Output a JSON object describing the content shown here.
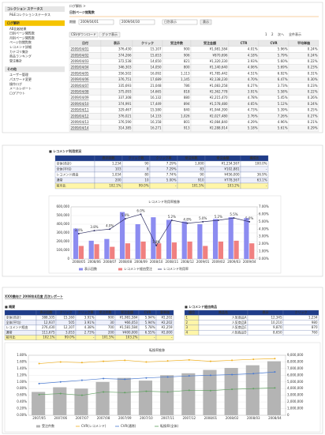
{
  "panel1": {
    "sidebar": [
      {
        "title": "コレクション ステータス",
        "items": [
          "P&Eコレクションステータス"
        ]
      },
      {
        "title": "ログ解析",
        "items": [
          "AB比較結果",
          "日別ページ閲覧数",
          "月別ページ閲覧数",
          "ページ別閲覧数",
          "レコメンド詳細",
          "カテゴリ集計",
          "商品ランキング",
          "受注集計"
        ]
      },
      {
        "title": "その他",
        "items": [
          "ユーザー管理",
          "パスワード変更",
          "操作ログ",
          "メールレポート",
          "ログアウト"
        ]
      }
    ],
    "breadcrumb": "ログ解析 >",
    "title": "日別ページ閲覧数",
    "filter": {
      "label": "期間",
      "from": "2009/04/01",
      "to": "2009/04/30",
      "unit": "日別表示",
      "button": "表示"
    },
    "toolbar": {
      "csv": "CSVダウンロード",
      "graph": "グラフ表示",
      "pager": [
        "1",
        "2",
        "次へ",
        "全件表示"
      ]
    },
    "table": {
      "headers": [
        "日付",
        "表示",
        "クリック",
        "受注件数",
        "受注金額",
        "CTR",
        "CVR",
        "平均単価"
      ],
      "rows": [
        [
          "2009/04/01",
          "376,430",
          "15,107",
          "900",
          "¥1,981,584",
          "4.01%",
          "5.96%",
          "0.24%"
        ],
        [
          "2009/04/02",
          "374,266",
          "15,653",
          "906",
          "¥870,696",
          "4.18%",
          "5.79%",
          "0.24%"
        ],
        [
          "2009/04/03",
          "372,538",
          "14,650",
          "821",
          "¥1,320,330",
          "3.93%",
          "5.60%",
          "0.22%"
        ],
        [
          "2009/04/04",
          "346,303",
          "14,050",
          "800",
          "¥1,140,640",
          "4.06%",
          "5.69%",
          "0.23%"
        ],
        [
          "2009/04/05",
          "356,502",
          "16,092",
          "1,113",
          "¥1,785,442",
          "4.51%",
          "6.92%",
          "0.31%"
        ],
        [
          "2009/04/06",
          "376,751",
          "17,689",
          "1,145",
          "¥2,138,230",
          "4.70%",
          "6.47%",
          "0.30%"
        ],
        [
          "2009/04/07",
          "335,693",
          "21,048",
          "786",
          "¥1,083,258",
          "6.27%",
          "3.73%",
          "0.23%"
        ],
        [
          "2009/04/08",
          "375,093",
          "14,665",
          "818",
          "¥2,362,778",
          "3.91%",
          "5.58%",
          "0.22%"
        ],
        [
          "2009/04/09",
          "337,308",
          "16,132",
          "880",
          "¥2,215,470",
          "4.78%",
          "5.45%",
          "0.26%"
        ],
        [
          "2009/04/10",
          "374,991",
          "17,449",
          "894",
          "¥1,578,480",
          "4.65%",
          "5.12%",
          "0.24%"
        ],
        [
          "2009/04/11",
          "329,467",
          "15,580",
          "840",
          "¥1,944,390",
          "4.73%",
          "5.39%",
          "0.25%"
        ],
        [
          "2009/04/12",
          "376,021",
          "14,133",
          "1,026",
          "¥2,027,480",
          "3.76%",
          "7.26%",
          "0.27%"
        ],
        [
          "2009/04/13",
          "376,590",
          "16,158",
          "801",
          "¥2,084,840",
          "4.29%",
          "4.96%",
          "0.21%"
        ],
        [
          "2009/04/14",
          "314,385",
          "16,271",
          "913",
          "¥2,288,914",
          "5.18%",
          "5.61%",
          "0.29%"
        ]
      ]
    }
  },
  "panel2": {
    "heading": "■ レコメンド利用状況",
    "table": {
      "headers": [
        "",
        "表示回数",
        "クリック数",
        "クリック率",
        "受注件数",
        "受注金額",
        "構成比"
      ],
      "rows": [
        [
          "全体(合計)",
          "1,234",
          "90",
          "7.29%",
          "1,000",
          "¥1,234,567",
          "100.0%"
        ],
        [
          "全体(平均)",
          "103",
          "8",
          "7.29%",
          "83",
          "¥102,881",
          "-"
        ],
        [
          "レコメンド経由",
          "1,034",
          "80",
          "7.74%",
          "90",
          "¥456,000",
          "36.9%"
        ],
        [
          "通常",
          "200",
          "10",
          "5.00%",
          "910",
          "¥778,567",
          "63.1%"
        ],
        [
          "前月比",
          "102.1%",
          "99.0%",
          "-",
          "101.5%",
          "103.2%",
          "-"
        ]
      ]
    },
    "chart_data": {
      "type": "bar",
      "title": "レコメンド利用率推移",
      "categories": [
        "2008/05",
        "2008/06",
        "2008/07",
        "2008/08",
        "2008/09",
        "2008/10",
        "2008/11",
        "2008/12",
        "2009/01",
        "2009/02",
        "2009/03",
        "2009/04"
      ],
      "series": [
        {
          "name": "表示回数",
          "type": "bar",
          "color": "#8c8cf0",
          "values": [
            350000,
            210000,
            230000,
            540000,
            400000,
            480000,
            450000,
            430000,
            400000,
            460000,
            480000,
            470000
          ]
        },
        {
          "name": "レコメンド経由受注",
          "type": "bar",
          "color": "#f08080",
          "values": [
            150000,
            170000,
            140000,
            180000,
            200000,
            180000,
            190000,
            200000,
            150000,
            200000,
            210000,
            180000
          ]
        },
        {
          "name": "レコメンド利用率",
          "type": "line",
          "axis": "y2",
          "color": "#333366",
          "values": [
            3.4,
            3.8,
            4.0,
            5.4,
            6.0,
            1.8,
            5.2,
            4.8,
            5.0,
            5.2,
            5.5,
            5.0
          ],
          "value_labels": [
            "3.4%",
            "3.8%",
            "4.0%",
            "5.4%",
            "6.0%",
            "1.8%",
            "5.2%",
            "4.8%",
            "5.0%",
            "5.2%",
            "5.5%",
            "5.0%"
          ]
        }
      ],
      "ylim": [
        0,
        600000
      ],
      "yticks": [
        0,
        {
          "value": 100000,
          "label": "100,000"
        },
        {
          "value": 200000,
          "label": "200,000"
        },
        {
          "value": 300000,
          "label": "300,000"
        },
        {
          "value": 400000,
          "label": "400,000"
        },
        {
          "value": 500000,
          "label": "500,000"
        },
        {
          "value": 600000,
          "label": "600,000"
        }
      ],
      "y2lim": [
        0,
        7
      ],
      "y2ticks": [
        {
          "value": 0,
          "label": "0.00%"
        },
        {
          "value": 1,
          "label": "1.00%"
        },
        {
          "value": 2,
          "label": "2.00%"
        },
        {
          "value": 3,
          "label": "3.00%"
        },
        {
          "value": 4,
          "label": "4.00%"
        },
        {
          "value": 5,
          "label": "5.00%"
        },
        {
          "value": 6,
          "label": "6.00%"
        },
        {
          "value": 7,
          "label": "7.00%"
        }
      ],
      "grid": true
    }
  },
  "panel3": {
    "title": "XXX様向け 2008年4月度 月次レポート",
    "overview_heading": "■ 概要",
    "overview": {
      "headers": [
        "",
        "表示回数",
        "クリック",
        "クリック率",
        "受注件数",
        "受注金額",
        "CVR",
        "客単価"
      ],
      "rows": [
        [
          "全体(合計)",
          "388,105",
          "15,160",
          "3.91%",
          "900",
          "¥1,981,584",
          "5.94%",
          "¥2,202"
        ],
        [
          "全体(平均)",
          "12,937",
          "505",
          "3.91%",
          "30",
          "¥66,053",
          "5.94%",
          "¥2,202"
        ],
        [
          "レコメンド経由",
          "276,430",
          "12,107",
          "4.38%",
          "700",
          "¥1,581,584",
          "5.78%",
          "¥2,259"
        ],
        [
          "通常",
          "111,675",
          "3,053",
          "2.73%",
          "200",
          "¥400,000",
          "6.55%",
          "¥2,000"
        ],
        [
          "前月比",
          "102.1%",
          "99.0%",
          "-",
          "101.5%",
          "103.2%",
          "-",
          "-"
        ]
      ]
    },
    "ranking_heading": "■ レコメンド経由商品",
    "ranking": {
      "headers": [
        "順位",
        "商品名",
        "表示",
        "クリック"
      ],
      "rows": [
        [
          "1",
          "人気商品A",
          "12,345",
          "1,234"
        ],
        [
          "2",
          "人気商品B",
          "10,210",
          "980"
        ],
        [
          "3",
          "人気商品C",
          "9,870",
          "870"
        ],
        [
          "4",
          "人気商品D",
          "8,650",
          "760"
        ]
      ]
    },
    "chart_data": {
      "type": "bar",
      "title": "転換率推移",
      "categories": [
        "2007/05",
        "2007/06",
        "2007/07",
        "2007/08",
        "2007/09",
        "2007/10",
        "2007/11",
        "2007/12",
        "2008/01",
        "2008/02",
        "2008/03",
        "2008/04"
      ],
      "series": [
        {
          "name": "受注件数",
          "type": "bar",
          "axis": "y2",
          "color": "#b4b4b4",
          "values": [
            3500000,
            4200000,
            4000000,
            5000000,
            5600000,
            5200000,
            6000000,
            6300000,
            6800000,
            7100000,
            7500000,
            8100000
          ]
        },
        {
          "name": "CVR(レコメンド)",
          "type": "line",
          "color": "#f0b020",
          "values": [
            1.55,
            1.6,
            1.58,
            1.62,
            1.65,
            1.6,
            1.63,
            1.66,
            1.62,
            1.65,
            1.68,
            1.7
          ]
        },
        {
          "name": "CVR(通常)",
          "type": "line",
          "color": "#4a7ad0",
          "values": [
            0.95,
            1.0,
            1.05,
            1.1,
            1.08,
            1.12,
            1.15,
            1.18,
            1.2,
            1.22,
            1.25,
            1.3
          ]
        },
        {
          "name": "転換率(全体)",
          "type": "line",
          "color": "#60a060",
          "values": [
            0.62,
            0.65,
            0.6,
            0.7,
            0.68,
            0.72,
            0.7,
            0.75,
            0.74,
            0.78,
            0.8,
            0.82
          ]
        }
      ],
      "ylim": [
        0,
        1.8
      ],
      "yticks": [
        {
          "value": 0,
          "label": "0.00%"
        },
        {
          "value": 0.2,
          "label": "0.20%"
        },
        {
          "value": 0.4,
          "label": "0.40%"
        },
        {
          "value": 0.6,
          "label": "0.60%"
        },
        {
          "value": 0.8,
          "label": "0.80%"
        },
        {
          "value": 1.0,
          "label": "1.00%"
        },
        {
          "value": 1.2,
          "label": "1.20%"
        },
        {
          "value": 1.4,
          "label": "1.40%"
        },
        {
          "value": 1.6,
          "label": "1.60%"
        },
        {
          "value": 1.8,
          "label": "1.80%"
        }
      ],
      "y2lim": [
        0,
        9000000
      ],
      "y2ticks": [
        0,
        {
          "value": 1000000,
          "label": "1,000,000"
        },
        {
          "value": 2000000,
          "label": "2,000,000"
        },
        {
          "value": 3000000,
          "label": "3,000,000"
        },
        {
          "value": 4000000,
          "label": "4,000,000"
        },
        {
          "value": 5000000,
          "label": "5,000,000"
        },
        {
          "value": 6000000,
          "label": "6,000,000"
        },
        {
          "value": 7000000,
          "label": "7,000,000"
        },
        {
          "value": 8000000,
          "label": "8,000,000"
        },
        {
          "value": 9000000,
          "label": "9,000,000"
        }
      ],
      "grid": true
    }
  }
}
